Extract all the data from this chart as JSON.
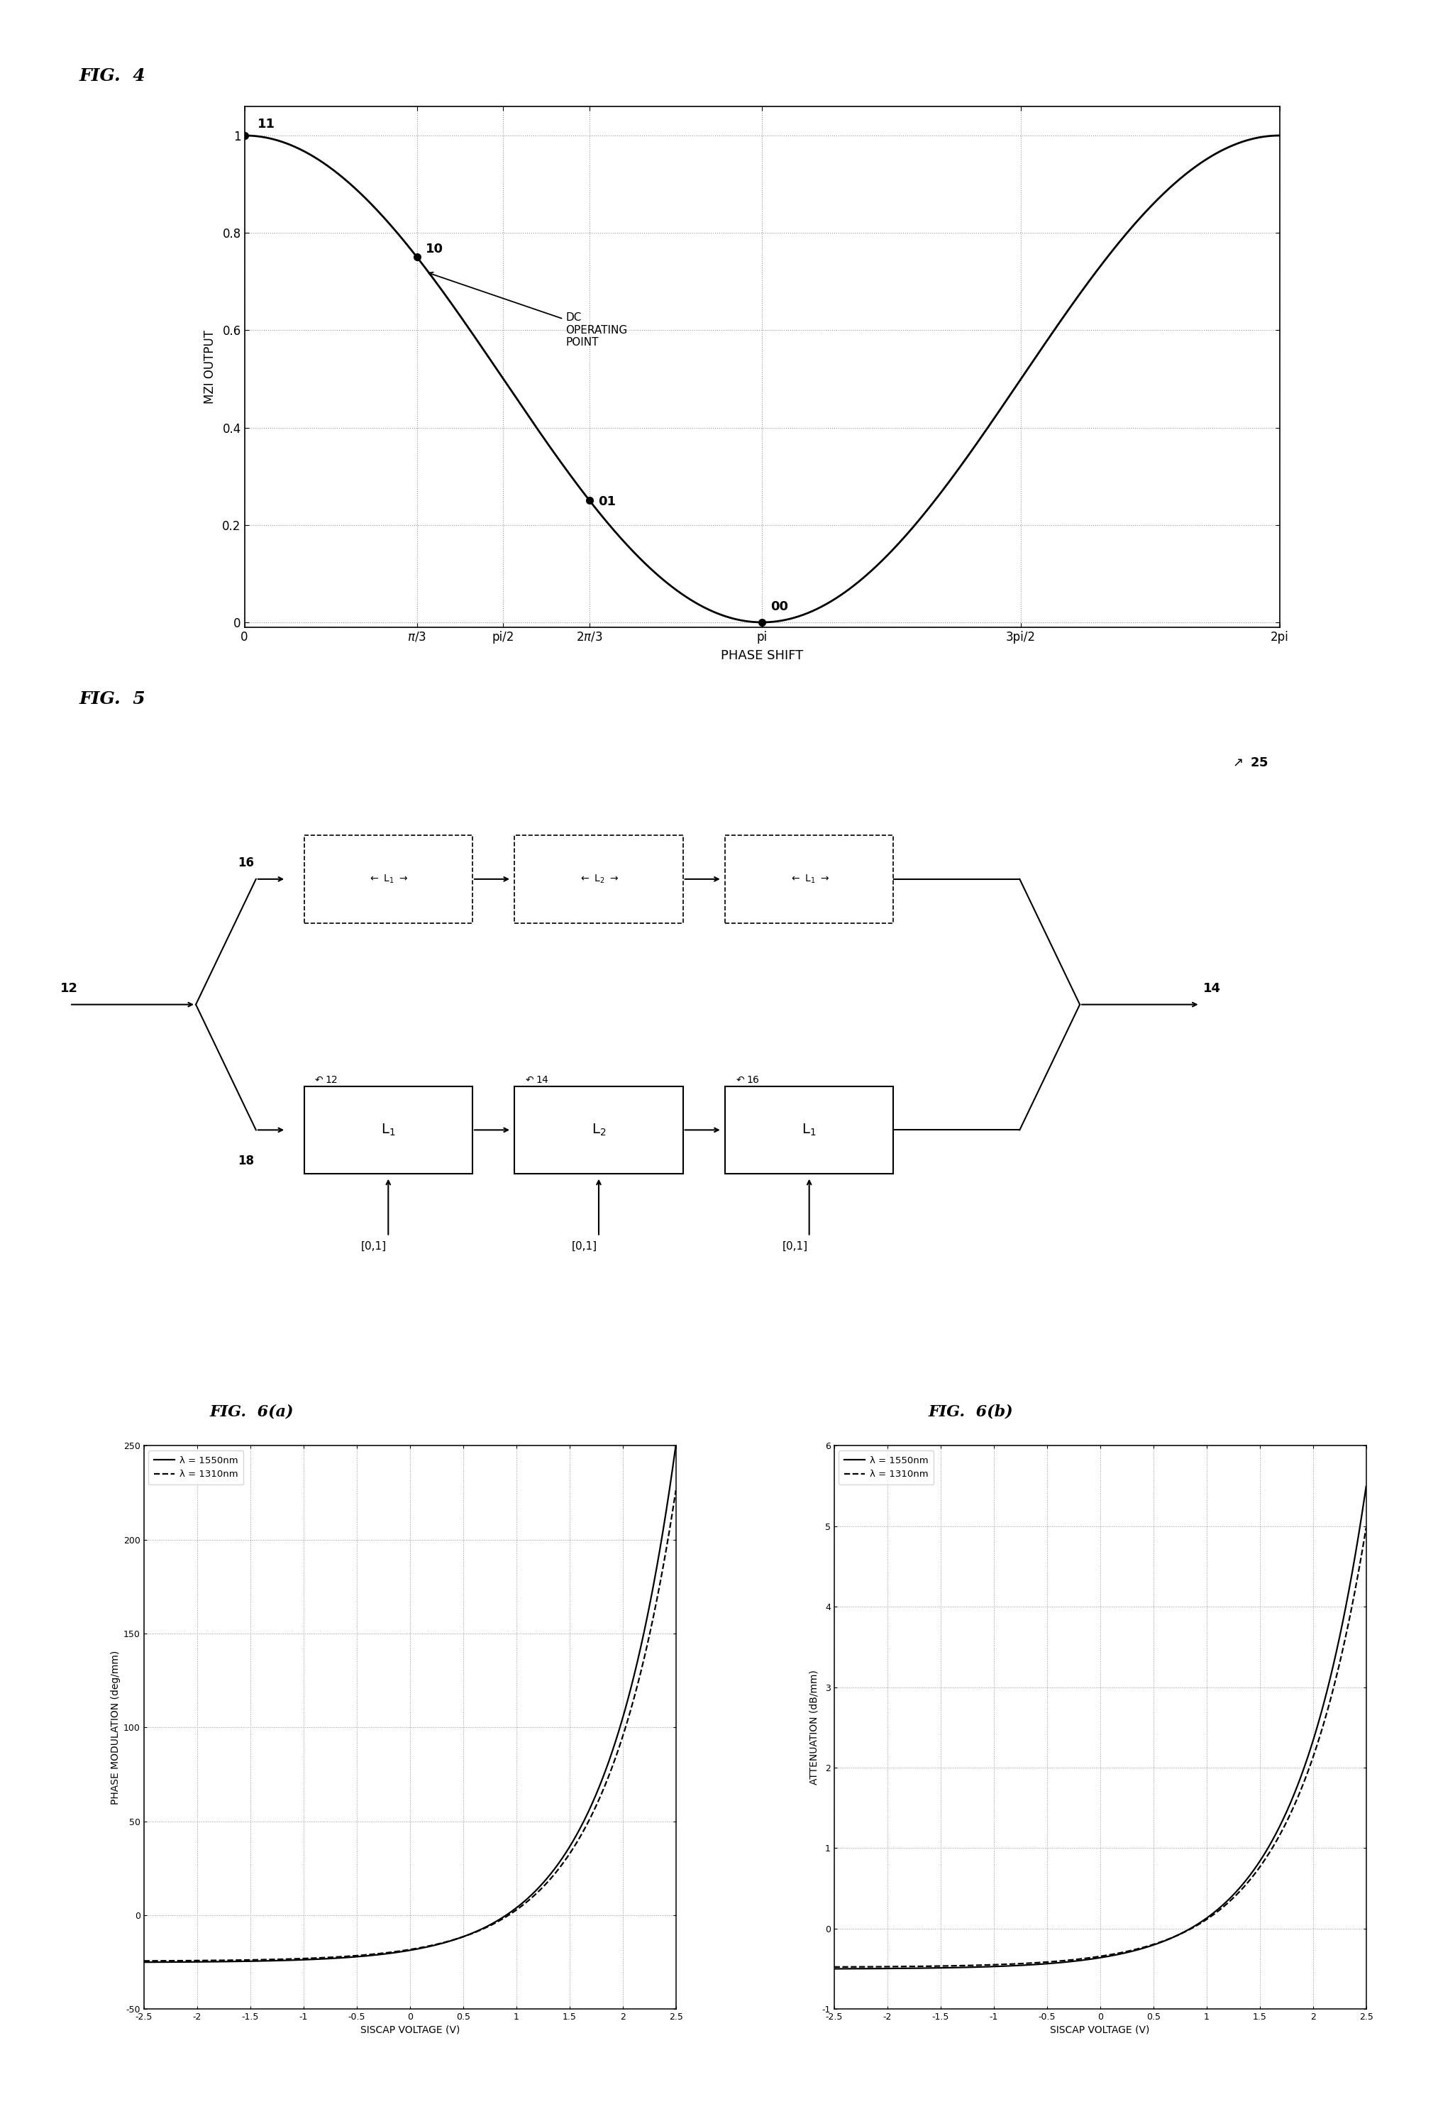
{
  "fig4_title": "FIG.  4",
  "fig5_title": "FIG.  5",
  "fig6a_title": "FIG.  6(a)",
  "fig6b_title": "FIG.  6(b)",
  "fig4_ylabel": "MZI OUTPUT",
  "fig4_xlabel": "PHASE SHIFT",
  "fig4_yticks": [
    0,
    0.2,
    0.4,
    0.6,
    0.8,
    1
  ],
  "fig4_points": {
    "11": [
      0.0,
      1.0
    ],
    "10": [
      1.047,
      0.75
    ],
    "01": [
      2.094,
      0.25
    ],
    "00": [
      3.14159,
      0.0
    ]
  },
  "dc_annotation": "DC\nOPERATING\nPOINT",
  "fig6a_ylabel": "PHASE MODULATION (deg/mm)",
  "fig6a_xlabel": "SISCAP VOLTAGE (V)",
  "fig6b_ylabel": "ATTENUATION (dB/mm)",
  "fig6b_xlabel": "SISCAP VOLTAGE (V)",
  "fig6_xlim": [
    -2.5,
    2.5
  ],
  "fig6a_ylim": [
    -50,
    250
  ],
  "fig6b_ylim": [
    -1,
    6
  ],
  "fig6a_yticks": [
    -50,
    0,
    50,
    100,
    150,
    200,
    250
  ],
  "fig6b_yticks": [
    -1,
    0,
    1,
    2,
    3,
    4,
    5,
    6
  ],
  "fig6_xticks": [
    -2.5,
    -2,
    -1.5,
    -1,
    -0.5,
    0,
    0.5,
    1,
    1.5,
    2,
    2.5
  ],
  "fig6_xtick_labels": [
    "-2.5",
    "-2",
    "-1.5",
    "-1",
    "-0.5",
    "0",
    "0.5",
    "1",
    "1.5",
    "2",
    "2.5"
  ],
  "legend_1550": "λ = 1550nm",
  "legend_1310": "λ = 1310nm",
  "background_color": "#ffffff",
  "line_color": "#000000",
  "grid_color": "#999999",
  "grid_linestyle": ":"
}
